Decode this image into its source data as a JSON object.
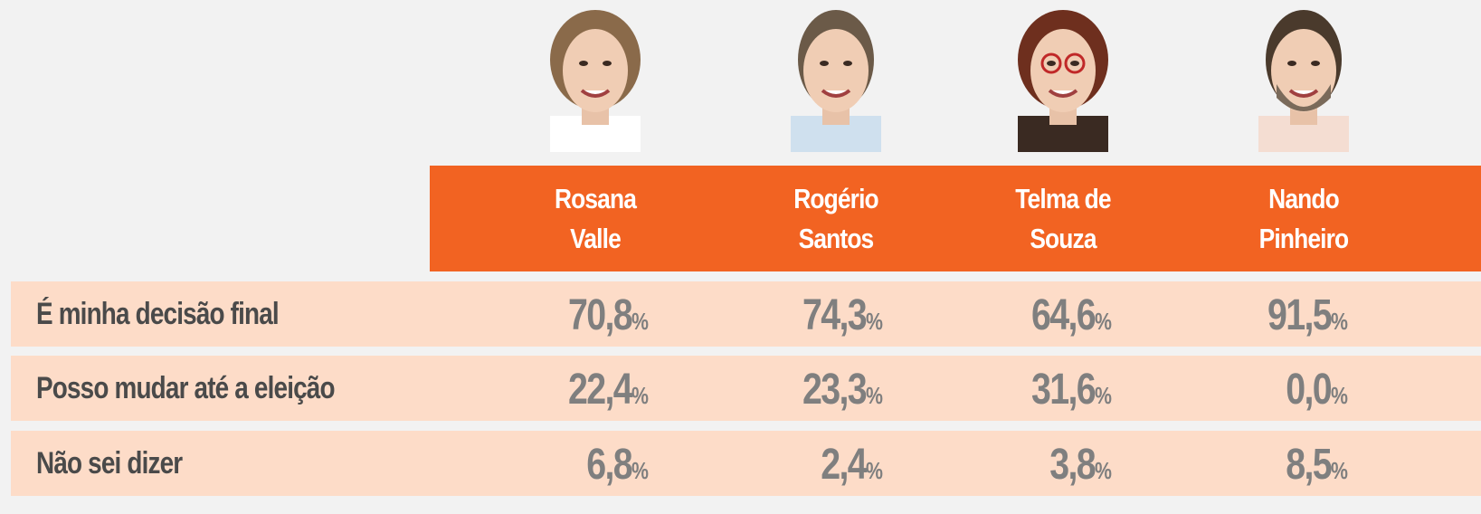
{
  "header": {
    "candidates": [
      {
        "name_lines": [
          "Rosana",
          "Valle"
        ]
      },
      {
        "name_lines": [
          "Rogério",
          "Santos"
        ]
      },
      {
        "name_lines": [
          "Telma de",
          "Souza"
        ]
      },
      {
        "name_lines": [
          "Nando",
          "Pinheiro"
        ]
      }
    ]
  },
  "table": {
    "unit": "%",
    "rows": [
      {
        "label": "É minha decisão final",
        "values": [
          "70,8",
          "74,3",
          "64,6",
          "91,5"
        ]
      },
      {
        "label": "Posso mudar até a eleição",
        "values": [
          "22,4",
          "23,3",
          "31,6",
          "0,0"
        ]
      },
      {
        "label": "Não sei dizer",
        "values": [
          "6,8",
          "2,4",
          "3,8",
          "8,5"
        ]
      }
    ]
  }
}
